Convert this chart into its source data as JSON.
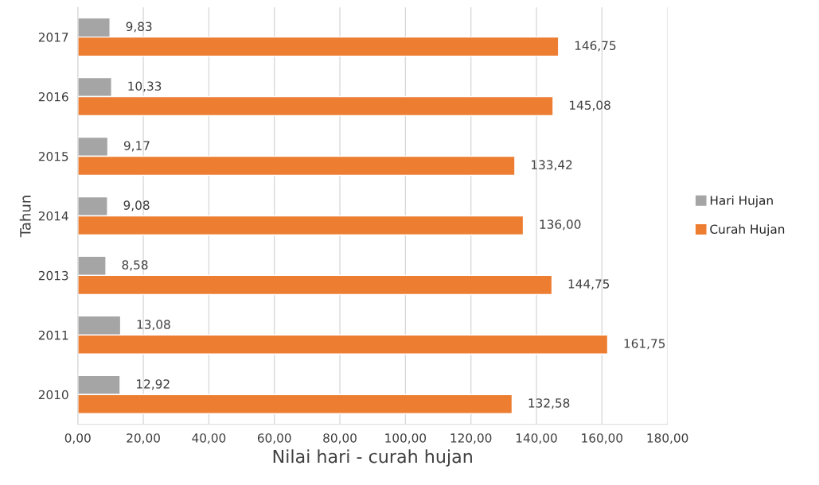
{
  "chart_data": {
    "type": "bar",
    "orientation": "horizontal",
    "xlabel": "Nilai hari - curah hujan",
    "ylabel": "Tahun",
    "categories": [
      "2017",
      "2016",
      "2015",
      "2014",
      "2013",
      "2011",
      "2010"
    ],
    "series": [
      {
        "name": "Hari Hujan",
        "color": "#a5a5a5",
        "values": [
          9.83,
          10.33,
          9.17,
          9.08,
          8.58,
          13.08,
          12.92
        ],
        "value_labels": [
          "9,83",
          "10,33",
          "9,17",
          "9,08",
          "8,58",
          "13,08",
          "12,92"
        ]
      },
      {
        "name": "Curah Hujan",
        "color": "#ed7d31",
        "values": [
          146.75,
          145.08,
          133.42,
          136.0,
          144.75,
          161.75,
          132.58
        ],
        "value_labels": [
          "146,75",
          "145,08",
          "133,42",
          "136,00",
          "144,75",
          "161,75",
          "132,58"
        ]
      }
    ],
    "xlim": [
      0,
      180
    ],
    "xticks": [
      {
        "value": 0,
        "label": "0,00"
      },
      {
        "value": 20,
        "label": "20,00"
      },
      {
        "value": 40,
        "label": "40,00"
      },
      {
        "value": 60,
        "label": "60,00"
      },
      {
        "value": 80,
        "label": "80,00"
      },
      {
        "value": 100,
        "label": "100,00"
      },
      {
        "value": 120,
        "label": "120,00"
      },
      {
        "value": 140,
        "label": "140,00"
      },
      {
        "value": 160,
        "label": "160,00"
      },
      {
        "value": 180,
        "label": "180,00"
      }
    ],
    "grid": "x",
    "legend": "right"
  }
}
